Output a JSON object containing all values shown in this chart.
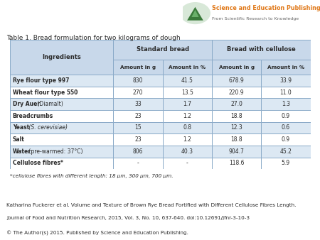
{
  "title": "Table 1. Bread formulation for two kilograms of dough",
  "rows": [
    [
      "Rye flour type 997",
      "830",
      "41.5",
      "678.9",
      "33.9"
    ],
    [
      "Wheat flour type 550",
      "270",
      "13.5",
      "220.9",
      "11.0"
    ],
    [
      "Dry Auer (Diamalt)",
      "33",
      "1.7",
      "27.0",
      "1.3"
    ],
    [
      "Breadcrumbs",
      "23",
      "1.2",
      "18.8",
      "0.9"
    ],
    [
      "Yeast (S. cerevisiae)",
      "15",
      "0.8",
      "12.3",
      "0.6"
    ],
    [
      "Salt",
      "23",
      "1.2",
      "18.8",
      "0.9"
    ],
    [
      "Water (pre-warmed: 37°C)",
      "806",
      "40.3",
      "904.7",
      "45.2"
    ],
    [
      "Cellulose fibres*",
      "-",
      "-",
      "118.6",
      "5.9"
    ]
  ],
  "footnote": "*cellulose fibres with different length: 18 μm, 300 μm, 700 μm.",
  "citation1": "Katharina Fuckerer et al. Volume and Texture of Brown Rye Bread Fortified with Different Cellulose Fibres Length.",
  "citation2": "Journal of Food and Nutrition Research, 2015, Vol. 3, No. 10, 637-640. doi:10.12691/jfnr-3-10-3",
  "copyright": "© The Author(s) 2015. Published by Science and Education Publishing.",
  "header_bg": "#c8d8ea",
  "row_bg_odd": "#dce8f3",
  "row_bg_even": "#ffffff",
  "border_color": "#8aaac8",
  "text_color": "#2a2a2a",
  "logo_text1": "Science and Education Publishing",
  "logo_text2": "From Scientific Research to Knowledge",
  "logo_orange": "#e07818",
  "logo_gray": "#666666",
  "logo_green_dark": "#3a7a3a",
  "logo_green_light": "#6ab06a",
  "logo_circle": "#d8e8d8"
}
